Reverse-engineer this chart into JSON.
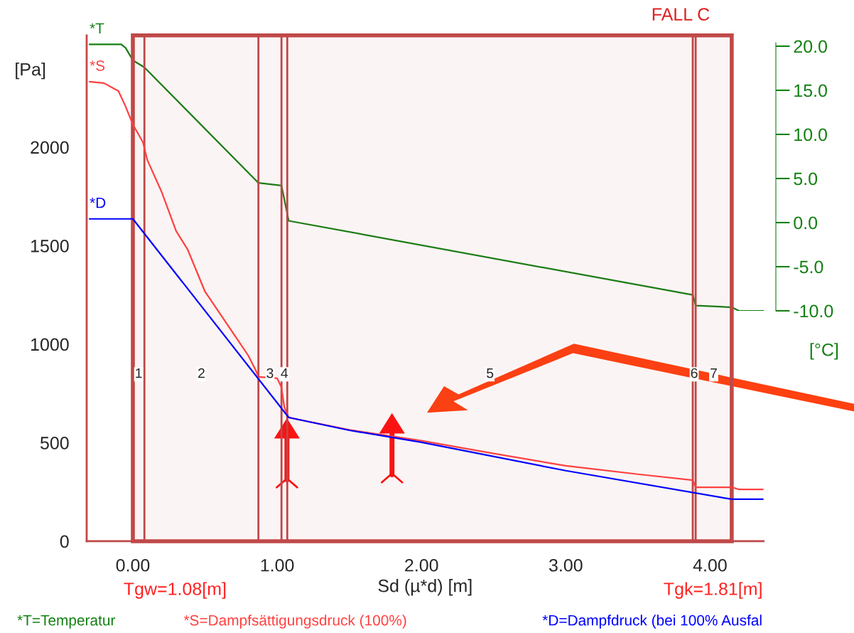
{
  "chart_data": {
    "type": "line",
    "title": "FALL C",
    "xlabel": "Sd (µ*d) [m]",
    "ylabel": "[Pa]",
    "y2label": "[°C]",
    "xlim": [
      -0.32,
      4.37
    ],
    "xticks": [
      {
        "value": 0,
        "label": "0.00"
      },
      {
        "value": 1,
        "label": "1.00"
      },
      {
        "value": 2,
        "label": "2.00"
      },
      {
        "value": 3,
        "label": "3.00"
      },
      {
        "value": 4,
        "label": "4.00"
      }
    ],
    "ylim": [
      0,
      2567
    ],
    "yticks": [
      0,
      500,
      1000,
      1500,
      2000
    ],
    "y2lim": [
      -10,
      20.4
    ],
    "y2ticks": [
      {
        "value": -10,
        "label": "-10.0"
      },
      {
        "value": -5,
        "label": "-5.0"
      },
      {
        "value": 0,
        "label": "0.0"
      },
      {
        "value": 5,
        "label": "5.0"
      },
      {
        "value": 10,
        "label": "10.0"
      },
      {
        "value": 15,
        "label": "15.0"
      },
      {
        "value": 20,
        "label": "20.0"
      }
    ],
    "grid": false,
    "legend": false,
    "series": [
      {
        "name": "*T",
        "color": "#138013",
        "axis": "y2",
        "x": [
          -0.3,
          -0.08,
          -0.05,
          0.0,
          0.08,
          0.87,
          1.03,
          1.08,
          3.88,
          3.9,
          4.15,
          4.2,
          4.37
        ],
        "values": [
          20.2,
          20.2,
          19.8,
          18.4,
          17.6,
          4.5,
          4.2,
          0.2,
          -8.2,
          -9.4,
          -9.6,
          -10.0,
          -10.0
        ]
      },
      {
        "name": "*S",
        "color": "#ff4040",
        "x": [
          -0.3,
          -0.2,
          -0.1,
          -0.05,
          0.0,
          0.07,
          0.1,
          0.2,
          0.3,
          0.38,
          0.5,
          0.6,
          0.7,
          0.8,
          0.85,
          0.87,
          1.0,
          1.03,
          1.05,
          1.08,
          1.5,
          2.0,
          2.5,
          3.0,
          3.5,
          3.88,
          3.9,
          4.15,
          4.2,
          4.37
        ],
        "values": [
          2332,
          2325,
          2285,
          2206,
          2115,
          2025,
          1935,
          1772,
          1574,
          1480,
          1267,
          1159,
          1051,
          942,
          870,
          834,
          827,
          780,
          680,
          628,
          565,
          510,
          445,
          383,
          340,
          310,
          274,
          274,
          263,
          263
        ]
      },
      {
        "name": "*D",
        "color": "#0000ff",
        "x": [
          -0.3,
          0.0,
          1.08,
          1.5,
          2.0,
          3.0,
          4.15,
          4.37
        ],
        "values": [
          1636,
          1636,
          628,
          563,
          502,
          358,
          213,
          213
        ]
      }
    ],
    "ref_lines": [
      {
        "axis": "x",
        "value": 0.08
      },
      {
        "axis": "x",
        "value": 0.87
      },
      {
        "axis": "x",
        "value": 1.03
      },
      {
        "axis": "x",
        "value": 1.07
      },
      {
        "axis": "x",
        "value": 3.88
      },
      {
        "axis": "x",
        "value": 3.9
      }
    ],
    "bands": [
      {
        "axis": "x",
        "from": 0.0,
        "to": 4.15,
        "color": "#c04848"
      }
    ],
    "annotations": [
      "Tgw=1.08[m]",
      "Tgk=1.81[m]",
      "*T=Temperatur",
      "*S=Dampfsättigungsdruck (100%)",
      "*D=Dampfdruck (bei 100% Ausfal",
      "1",
      "2",
      "3",
      "4",
      "5",
      "6",
      "7"
    ]
  }
}
